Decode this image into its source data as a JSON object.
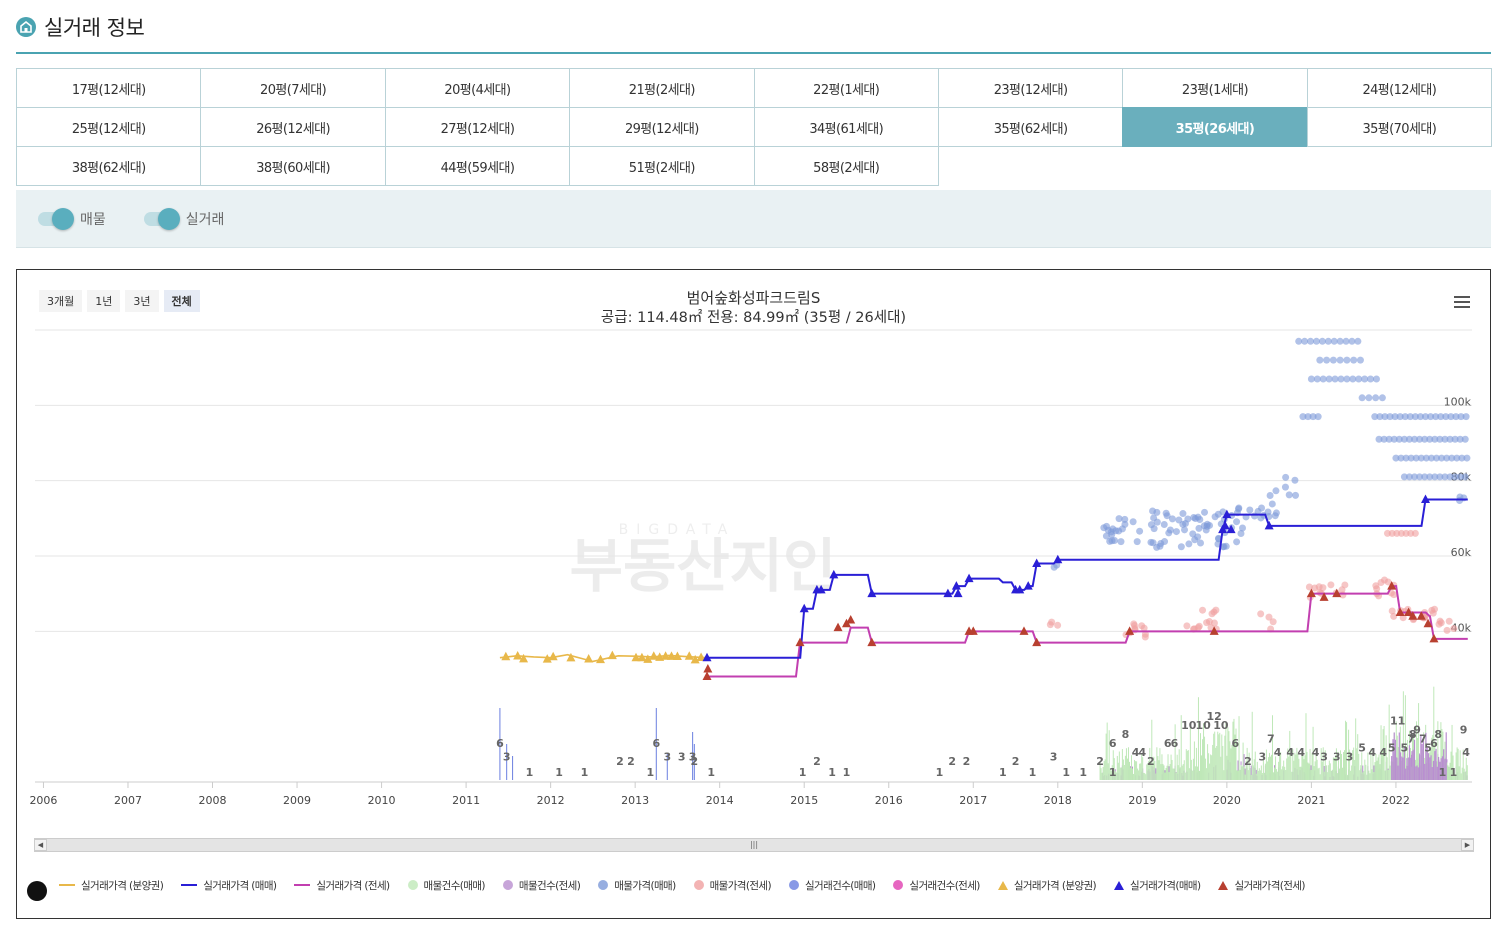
{
  "page": {
    "title": "실거래 정보"
  },
  "sizes": [
    {
      "label": "17평(12세대)",
      "active": false
    },
    {
      "label": "20평(7세대)",
      "active": false
    },
    {
      "label": "20평(4세대)",
      "active": false
    },
    {
      "label": "21평(2세대)",
      "active": false
    },
    {
      "label": "22평(1세대)",
      "active": false
    },
    {
      "label": "23평(12세대)",
      "active": false
    },
    {
      "label": "23평(1세대)",
      "active": false
    },
    {
      "label": "24평(12세대)",
      "active": false
    },
    {
      "label": "25평(12세대)",
      "active": false
    },
    {
      "label": "26평(12세대)",
      "active": false
    },
    {
      "label": "27평(12세대)",
      "active": false
    },
    {
      "label": "29평(12세대)",
      "active": false
    },
    {
      "label": "34평(61세대)",
      "active": false
    },
    {
      "label": "35평(62세대)",
      "active": false
    },
    {
      "label": "35평(26세대)",
      "active": true
    },
    {
      "label": "35평(70세대)",
      "active": false
    },
    {
      "label": "38평(62세대)",
      "active": false
    },
    {
      "label": "38평(60세대)",
      "active": false
    },
    {
      "label": "44평(59세대)",
      "active": false
    },
    {
      "label": "51평(2세대)",
      "active": false
    },
    {
      "label": "58평(2세대)",
      "active": false
    }
  ],
  "toggles": {
    "listing": "매물",
    "transaction": "실거래"
  },
  "range_buttons": [
    "3개월",
    "1년",
    "3년",
    "전체"
  ],
  "range_active": "전체",
  "watermark": {
    "small": "BIGDATA",
    "main": "부동산지인"
  },
  "chart_data": {
    "type": "line",
    "title": "범어숲화성파크드림S",
    "subtitle": "공급: 114.48㎡ 전용: 84.99㎡ (35평 / 26세대)",
    "x_range": [
      2005.9,
      2022.9
    ],
    "x_ticks": [
      "2006",
      "2007",
      "2008",
      "2009",
      "2010",
      "2011",
      "2012",
      "2013",
      "2014",
      "2015",
      "2016",
      "2017",
      "2018",
      "2019",
      "2020",
      "2021",
      "2022"
    ],
    "y_range": [
      0,
      120000
    ],
    "y_ticks": [
      {
        "value": 40000,
        "label": "40k"
      },
      {
        "value": 60000,
        "label": "60k"
      },
      {
        "value": 80000,
        "label": "80k"
      },
      {
        "value": 100000,
        "label": "100k"
      }
    ],
    "grid": true,
    "colors": {
      "presale_line": "#e8b84a",
      "sale_line": "#2a1fd6",
      "jeonse_line": "#c23fb0",
      "listing_count_sale": "#bfe8b8",
      "listing_count_jeonse": "#b98fd0",
      "listing_price_sale": "#7d9ad8",
      "listing_price_jeonse": "#f0a0a0",
      "deal_count_sale": "#6a7fe0",
      "deal_count_jeonse": "#e040b0",
      "presale_marker": "#e8b84a",
      "sale_marker": "#2a1fd6",
      "jeonse_marker": "#b84030"
    },
    "series": [
      {
        "name": "실거래가격 (분양권)",
        "type": "line",
        "x": [
          2011.4,
          2011.6,
          2011.8,
          2012.0,
          2012.2,
          2012.5,
          2012.8,
          2013.0,
          2013.2,
          2013.4,
          2013.6,
          2013.85
        ],
        "y": [
          33000,
          33500,
          33200,
          33000,
          33800,
          32000,
          33500,
          33400,
          33200,
          33600,
          33300,
          33000
        ]
      },
      {
        "name": "실거래가격 (매매)",
        "type": "step",
        "x": [
          2013.85,
          2014.9,
          2015.0,
          2015.15,
          2015.35,
          2015.7,
          2015.8,
          2016.7,
          2016.8,
          2016.95,
          2017.35,
          2017.5,
          2017.65,
          2017.75,
          2018.0,
          2019.8,
          2019.95,
          2020.0,
          2020.5,
          2021.0,
          2022.3,
          2022.35,
          2022.85
        ],
        "y": [
          33000,
          33000,
          46000,
          51000,
          55000,
          55000,
          50000,
          50000,
          52000,
          54000,
          53000,
          51000,
          52000,
          58000,
          59000,
          59000,
          67000,
          71000,
          68000,
          68000,
          68000,
          75000,
          75000
        ]
      },
      {
        "name": "실거래가격 (전세)",
        "type": "step",
        "x": [
          2013.85,
          2014.85,
          2014.95,
          2015.4,
          2015.55,
          2015.8,
          2016.85,
          2016.95,
          2017.6,
          2017.75,
          2018.75,
          2018.85,
          2019.85,
          2020.9,
          2021.0,
          2021.8,
          2021.95,
          2022.05,
          2022.4,
          2022.45,
          2022.85
        ],
        "y": [
          28000,
          28000,
          37000,
          37000,
          41000,
          37000,
          37000,
          40000,
          40000,
          37000,
          37000,
          40000,
          40000,
          40000,
          50000,
          50000,
          52000,
          45000,
          44000,
          38000,
          38000
        ]
      },
      {
        "name": "매물건수(매매)",
        "type": "column"
      },
      {
        "name": "매물건수(전세)",
        "type": "column"
      },
      {
        "name": "매물가격(매매)",
        "type": "scatter"
      },
      {
        "name": "매물가격(전세)",
        "type": "scatter"
      },
      {
        "name": "실거래건수(매매)",
        "type": "column"
      },
      {
        "name": "실거래건수(전세)",
        "type": "column"
      },
      {
        "name": "실거래가격 (분양권)",
        "type": "marker"
      },
      {
        "name": "실거래가격(매매)",
        "type": "marker"
      },
      {
        "name": "실거래가격(전세)",
        "type": "marker"
      }
    ],
    "count_labels": [
      {
        "x": 2011.4,
        "v": "6"
      },
      {
        "x": 2011.48,
        "v": "3"
      },
      {
        "x": 2011.75,
        "v": "1"
      },
      {
        "x": 2012.1,
        "v": "1"
      },
      {
        "x": 2012.4,
        "v": "1"
      },
      {
        "x": 2012.82,
        "v": "2"
      },
      {
        "x": 2012.95,
        "v": "2"
      },
      {
        "x": 2013.18,
        "v": "1"
      },
      {
        "x": 2013.25,
        "v": "6"
      },
      {
        "x": 2013.38,
        "v": "3"
      },
      {
        "x": 2013.55,
        "v": "3"
      },
      {
        "x": 2013.68,
        "v": "3"
      },
      {
        "x": 2013.7,
        "v": "2"
      },
      {
        "x": 2013.9,
        "v": "1"
      },
      {
        "x": 2014.98,
        "v": "1"
      },
      {
        "x": 2015.15,
        "v": "2"
      },
      {
        "x": 2015.33,
        "v": "1"
      },
      {
        "x": 2015.5,
        "v": "1"
      },
      {
        "x": 2016.6,
        "v": "1"
      },
      {
        "x": 2016.75,
        "v": "2"
      },
      {
        "x": 2016.92,
        "v": "2"
      },
      {
        "x": 2017.35,
        "v": "1"
      },
      {
        "x": 2017.5,
        "v": "2"
      },
      {
        "x": 2017.7,
        "v": "1"
      },
      {
        "x": 2017.95,
        "v": "3"
      },
      {
        "x": 2018.1,
        "v": "1"
      },
      {
        "x": 2018.3,
        "v": "1"
      },
      {
        "x": 2018.5,
        "v": "2"
      },
      {
        "x": 2018.65,
        "v": "1"
      },
      {
        "x": 2018.65,
        "v": "6"
      },
      {
        "x": 2018.8,
        "v": "8"
      },
      {
        "x": 2018.92,
        "v": "4"
      },
      {
        "x": 2019.0,
        "v": "4"
      },
      {
        "x": 2019.1,
        "v": "2"
      },
      {
        "x": 2019.3,
        "v": "6"
      },
      {
        "x": 2019.38,
        "v": "6"
      },
      {
        "x": 2019.55,
        "v": "10"
      },
      {
        "x": 2019.72,
        "v": "10"
      },
      {
        "x": 2019.85,
        "v": "12"
      },
      {
        "x": 2019.93,
        "v": "10"
      },
      {
        "x": 2020.1,
        "v": "6"
      },
      {
        "x": 2020.25,
        "v": "2"
      },
      {
        "x": 2020.42,
        "v": "3"
      },
      {
        "x": 2020.52,
        "v": "7"
      },
      {
        "x": 2020.6,
        "v": "4"
      },
      {
        "x": 2020.75,
        "v": "4"
      },
      {
        "x": 2020.88,
        "v": "4"
      },
      {
        "x": 2021.05,
        "v": "4"
      },
      {
        "x": 2021.15,
        "v": "3"
      },
      {
        "x": 2021.3,
        "v": "3"
      },
      {
        "x": 2021.45,
        "v": "3"
      },
      {
        "x": 2021.6,
        "v": "5"
      },
      {
        "x": 2021.72,
        "v": "4"
      },
      {
        "x": 2021.85,
        "v": "4"
      },
      {
        "x": 2021.95,
        "v": "5"
      },
      {
        "x": 2022.02,
        "v": "11"
      },
      {
        "x": 2022.1,
        "v": "5"
      },
      {
        "x": 2022.18,
        "v": "7"
      },
      {
        "x": 2022.25,
        "v": "9"
      },
      {
        "x": 2022.32,
        "v": "7"
      },
      {
        "x": 2022.38,
        "v": "5"
      },
      {
        "x": 2022.45,
        "v": "6"
      },
      {
        "x": 2022.5,
        "v": "8"
      },
      {
        "x": 2022.55,
        "v": "1"
      },
      {
        "x": 2022.68,
        "v": "1"
      },
      {
        "x": 2022.8,
        "v": "9"
      },
      {
        "x": 2022.83,
        "v": "4"
      },
      {
        "x": 2022.2,
        "v": "8"
      }
    ]
  }
}
